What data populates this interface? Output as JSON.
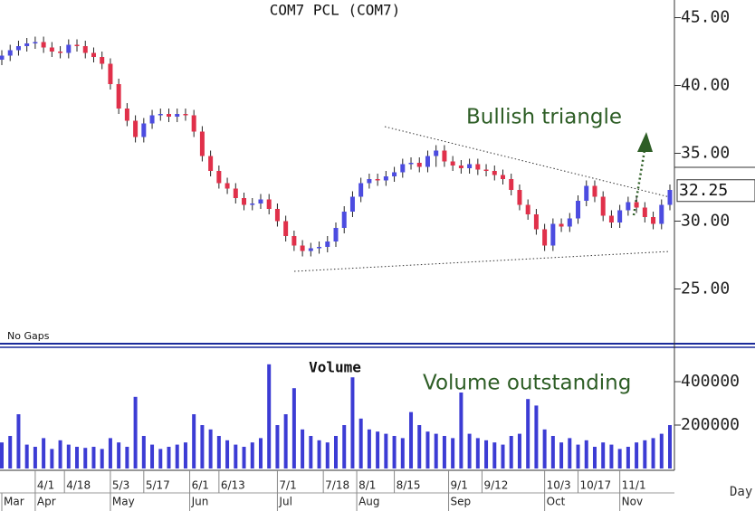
{
  "chart_data": [
    {
      "type": "candlestick",
      "title": "COM7 PCL (COM7)",
      "note": "No Gaps",
      "annotation": "Bullish triangle",
      "up_color": "#4c4ce0",
      "down_color": "#e0304a",
      "annotation_color": "#2e5e26",
      "xlim": [
        0,
        160
      ],
      "ylim": [
        21.1,
        46.3
      ],
      "yticks": [
        {
          "value": 25,
          "label": "25.00"
        },
        {
          "value": 30,
          "label": "30.00"
        },
        {
          "value": 35,
          "label": "35.00"
        },
        {
          "value": 40,
          "label": "40.00"
        },
        {
          "value": 45,
          "label": "45.00"
        }
      ],
      "last_price": 32.25,
      "x": [
        0,
        2,
        4,
        6,
        8,
        10,
        12,
        14,
        16,
        18,
        20,
        22,
        24,
        26,
        28,
        30,
        32,
        34,
        36,
        38,
        40,
        42,
        44,
        46,
        48,
        50,
        52,
        54,
        56,
        58,
        60,
        62,
        64,
        66,
        68,
        70,
        72,
        74,
        76,
        78,
        80,
        82,
        84,
        86,
        88,
        90,
        92,
        94,
        96,
        98,
        100,
        102,
        104,
        106,
        108,
        110,
        112,
        114,
        116,
        118,
        120,
        122,
        124,
        126,
        128,
        130,
        132,
        134,
        136,
        138,
        140,
        142,
        144,
        146,
        148,
        150,
        152,
        154,
        156,
        158,
        160
      ],
      "open": [
        41.9,
        42.2,
        42.6,
        42.9,
        43.1,
        43.2,
        42.8,
        42.5,
        42.4,
        43.0,
        42.9,
        42.4,
        42.1,
        41.6,
        40.1,
        38.3,
        37.4,
        36.2,
        37.2,
        37.8,
        37.9,
        37.7,
        37.9,
        37.8,
        36.6,
        34.8,
        33.7,
        32.8,
        32.4,
        31.7,
        31.2,
        31.3,
        31.6,
        30.9,
        30.0,
        28.9,
        28.2,
        27.8,
        28.0,
        28.1,
        28.5,
        29.5,
        30.7,
        31.8,
        32.8,
        33.1,
        33.0,
        33.3,
        33.6,
        34.2,
        34.3,
        34.0,
        34.8,
        35.2,
        34.4,
        34.1,
        33.9,
        34.2,
        33.8,
        33.7,
        33.4,
        33.1,
        32.3,
        31.2,
        30.5,
        29.4,
        28.2,
        29.8,
        29.6,
        30.2,
        31.5,
        32.6,
        31.8,
        30.4,
        29.9,
        30.8,
        31.4,
        31.0,
        30.3,
        29.8,
        31.2
      ],
      "high": [
        42.6,
        43.0,
        43.3,
        43.5,
        43.6,
        43.6,
        43.2,
        42.9,
        43.4,
        43.4,
        43.3,
        42.8,
        42.5,
        42.0,
        40.5,
        38.7,
        37.8,
        37.6,
        38.2,
        38.3,
        38.3,
        38.3,
        38.3,
        38.2,
        37.0,
        35.2,
        34.1,
        33.2,
        32.8,
        32.1,
        31.7,
        32.0,
        32.0,
        31.3,
        30.4,
        29.3,
        28.6,
        28.4,
        28.5,
        28.9,
        29.9,
        31.1,
        32.2,
        33.2,
        33.5,
        33.5,
        33.7,
        34.0,
        34.6,
        34.7,
        34.7,
        35.2,
        35.6,
        35.6,
        34.8,
        34.5,
        34.6,
        34.6,
        34.2,
        34.1,
        33.8,
        33.5,
        32.7,
        31.6,
        30.9,
        29.8,
        30.2,
        30.2,
        30.6,
        31.9,
        33.0,
        33.0,
        32.2,
        30.8,
        31.2,
        31.8,
        31.8,
        31.4,
        30.7,
        31.6,
        32.7
      ],
      "low": [
        41.5,
        41.8,
        42.2,
        42.5,
        42.7,
        42.4,
        42.1,
        42.0,
        42.0,
        42.5,
        42.0,
        41.7,
        41.2,
        39.7,
        37.9,
        37.0,
        35.8,
        35.8,
        36.8,
        37.4,
        37.3,
        37.3,
        37.4,
        36.2,
        34.4,
        33.3,
        32.4,
        32.0,
        31.3,
        30.8,
        30.8,
        30.9,
        30.5,
        29.6,
        28.5,
        27.8,
        27.4,
        27.4,
        27.6,
        27.7,
        28.1,
        29.1,
        30.3,
        31.4,
        32.4,
        32.6,
        32.6,
        32.9,
        33.2,
        33.8,
        33.6,
        33.6,
        34.0,
        34.0,
        33.7,
        33.5,
        33.5,
        33.4,
        33.3,
        33.0,
        32.7,
        31.9,
        30.8,
        30.1,
        29.0,
        27.8,
        27.8,
        29.2,
        29.2,
        29.8,
        31.1,
        31.4,
        30.0,
        29.5,
        29.5,
        30.4,
        30.6,
        29.9,
        29.4,
        29.4,
        30.8
      ],
      "close": [
        42.2,
        42.6,
        42.9,
        43.1,
        43.2,
        42.8,
        42.5,
        42.4,
        43.0,
        42.9,
        42.4,
        42.1,
        41.6,
        40.1,
        38.3,
        37.4,
        36.2,
        37.2,
        37.8,
        37.9,
        37.7,
        37.9,
        37.8,
        36.6,
        34.8,
        33.7,
        32.8,
        32.4,
        31.7,
        31.2,
        31.3,
        31.6,
        30.9,
        30.0,
        28.9,
        28.2,
        27.8,
        28.0,
        28.1,
        28.5,
        29.5,
        30.7,
        31.8,
        32.8,
        33.1,
        33.0,
        33.3,
        33.6,
        34.2,
        34.3,
        34.0,
        34.8,
        35.2,
        34.4,
        34.1,
        33.9,
        34.2,
        33.8,
        33.7,
        33.4,
        33.1,
        32.3,
        31.2,
        30.5,
        29.4,
        28.2,
        29.8,
        29.6,
        30.2,
        31.5,
        32.6,
        31.8,
        30.4,
        29.9,
        30.8,
        31.4,
        31.0,
        30.3,
        29.8,
        31.2,
        32.3
      ]
    },
    {
      "type": "bar",
      "title": "Volume",
      "annotation": "Volume outstanding",
      "x_label": "Day",
      "color": "#3c3cd4",
      "annotation_color": "#2e5e26",
      "xlim": [
        0,
        160
      ],
      "ylim": [
        0,
        550000
      ],
      "yticks": [
        200000,
        400000
      ],
      "xticks": [
        {
          "value": 8,
          "label": "4/1"
        },
        {
          "value": 15,
          "label": "4/18"
        },
        {
          "value": 26,
          "label": "5/3"
        },
        {
          "value": 34,
          "label": "5/17"
        },
        {
          "value": 45,
          "label": "6/1"
        },
        {
          "value": 52,
          "label": "6/13"
        },
        {
          "value": 66,
          "label": "7/1"
        },
        {
          "value": 77,
          "label": "7/18"
        },
        {
          "value": 85,
          "label": "8/1"
        },
        {
          "value": 94,
          "label": "8/15"
        },
        {
          "value": 107,
          "label": "9/1"
        },
        {
          "value": 115,
          "label": "9/12"
        },
        {
          "value": 130,
          "label": "10/3"
        },
        {
          "value": 138,
          "label": "10/17"
        },
        {
          "value": 148,
          "label": "11/1"
        }
      ],
      "month_ticks": [
        {
          "value": 0,
          "label": "Mar"
        },
        {
          "value": 8,
          "label": "Apr"
        },
        {
          "value": 26,
          "label": "May"
        },
        {
          "value": 45,
          "label": "Jun"
        },
        {
          "value": 66,
          "label": "Jul"
        },
        {
          "value": 85,
          "label": "Aug"
        },
        {
          "value": 107,
          "label": "Sep"
        },
        {
          "value": 130,
          "label": "Oct"
        },
        {
          "value": 148,
          "label": "Nov"
        }
      ],
      "x": [
        0,
        2,
        4,
        6,
        8,
        10,
        12,
        14,
        16,
        18,
        20,
        22,
        24,
        26,
        28,
        30,
        32,
        34,
        36,
        38,
        40,
        42,
        44,
        46,
        48,
        50,
        52,
        54,
        56,
        58,
        60,
        62,
        64,
        66,
        68,
        70,
        72,
        74,
        76,
        78,
        80,
        82,
        84,
        86,
        88,
        90,
        92,
        94,
        96,
        98,
        100,
        102,
        104,
        106,
        108,
        110,
        112,
        114,
        116,
        118,
        120,
        122,
        124,
        126,
        128,
        130,
        132,
        134,
        136,
        138,
        140,
        142,
        144,
        146,
        148,
        150,
        152,
        154,
        156,
        158,
        160
      ],
      "values": [
        120000,
        150000,
        250000,
        110000,
        100000,
        140000,
        90000,
        130000,
        110000,
        100000,
        95000,
        100000,
        90000,
        140000,
        120000,
        100000,
        330000,
        150000,
        110000,
        90000,
        100000,
        110000,
        120000,
        250000,
        200000,
        180000,
        150000,
        130000,
        110000,
        100000,
        120000,
        140000,
        480000,
        200000,
        250000,
        370000,
        180000,
        150000,
        130000,
        120000,
        150000,
        200000,
        420000,
        230000,
        180000,
        170000,
        160000,
        150000,
        140000,
        260000,
        200000,
        170000,
        160000,
        150000,
        140000,
        350000,
        160000,
        140000,
        130000,
        120000,
        110000,
        150000,
        160000,
        320000,
        290000,
        180000,
        150000,
        120000,
        140000,
        110000,
        130000,
        100000,
        120000,
        110000,
        90000,
        100000,
        120000,
        130000,
        140000,
        160000,
        200000
      ]
    }
  ]
}
